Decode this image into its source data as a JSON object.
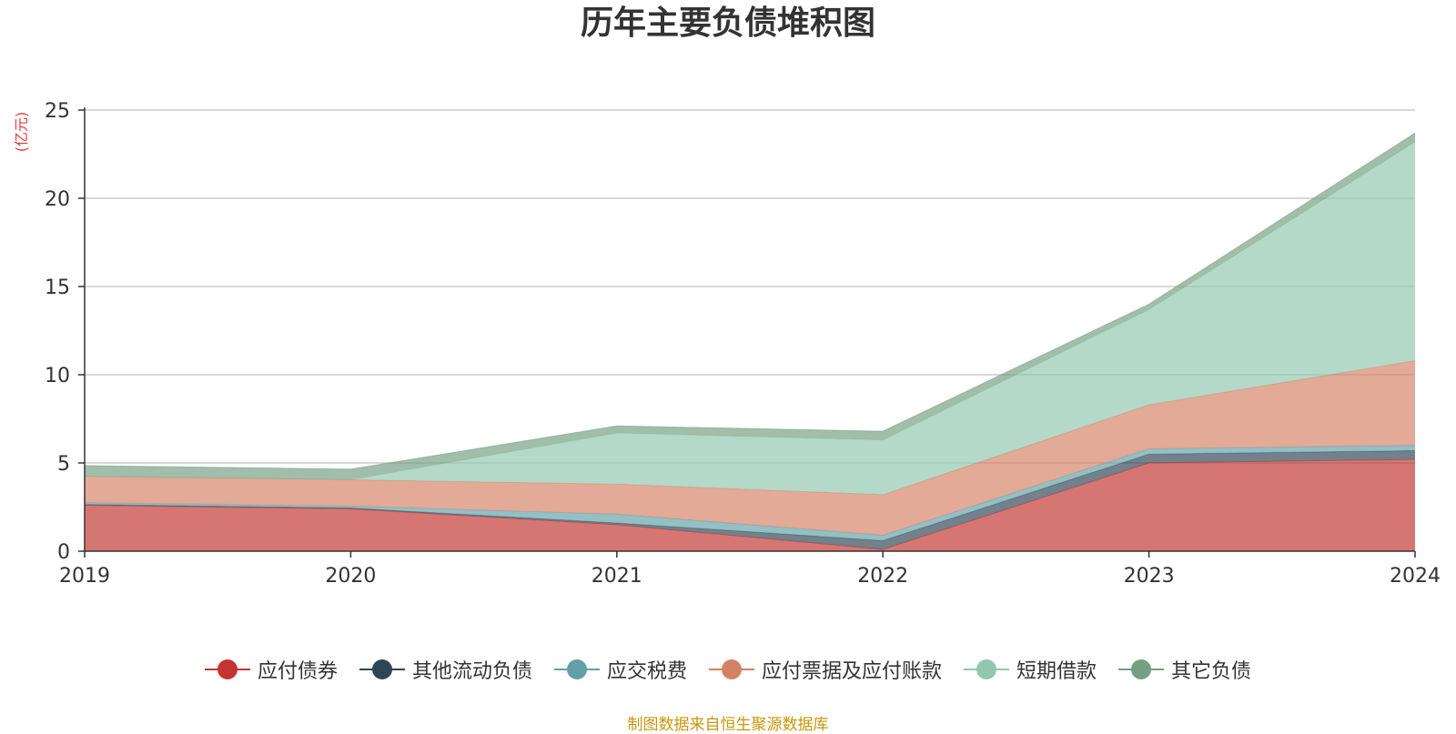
{
  "chart_data": {
    "type": "area",
    "stacked": true,
    "title": "历年主要负债堆积图",
    "unit_label": "(亿元)",
    "x": [
      "2019",
      "2020",
      "2021",
      "2022",
      "2023",
      "2024"
    ],
    "ylim": [
      0,
      25
    ],
    "y_ticks": [
      "0",
      "5",
      "10",
      "15",
      "20",
      "25"
    ],
    "grid": true,
    "legend_position": "bottom",
    "series": [
      {
        "name": "应付债券",
        "color": "#c23531",
        "values": [
          2.6,
          2.4,
          1.5,
          0.1,
          5.0,
          5.2
        ]
      },
      {
        "name": "其他流动负债",
        "color": "#2f4554",
        "values": [
          0.05,
          0.05,
          0.1,
          0.5,
          0.5,
          0.5
        ]
      },
      {
        "name": "应交税费",
        "color": "#61a0a8",
        "values": [
          0.1,
          0.1,
          0.5,
          0.3,
          0.3,
          0.3
        ]
      },
      {
        "name": "应付票据及应付账款",
        "color": "#d48265",
        "values": [
          1.5,
          1.5,
          1.7,
          2.3,
          2.5,
          4.8
        ]
      },
      {
        "name": "短期借款",
        "color": "#91c7ae",
        "values": [
          0.0,
          0.0,
          2.9,
          3.1,
          5.4,
          12.4
        ]
      },
      {
        "name": "其它负债",
        "color": "#749f83",
        "values": [
          0.6,
          0.6,
          0.4,
          0.5,
          0.3,
          0.5
        ]
      }
    ]
  },
  "source_note": "制图数据来自恒生聚源数据库"
}
